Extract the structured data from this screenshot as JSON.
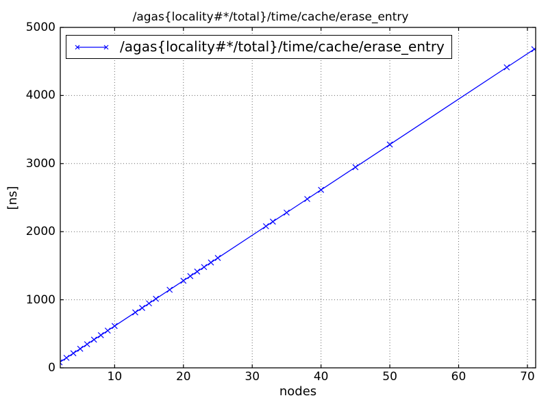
{
  "chart_data": {
    "type": "line",
    "title": "/agas{locality#*/total}/time/cache/erase_entry",
    "xlabel": "nodes",
    "ylabel": "[ns]",
    "xlim": [
      2.1,
      71.2
    ],
    "ylim": [
      0,
      5000
    ],
    "xticks": [
      10,
      20,
      30,
      40,
      50,
      60,
      70
    ],
    "yticks": [
      0,
      1000,
      2000,
      3000,
      4000,
      5000
    ],
    "grid": "dotted",
    "grid_color": "#666666",
    "legend_position": "upper left",
    "series": [
      {
        "name": "/agas{locality#*/total}/time/cache/erase_entry",
        "color": "#0000ff",
        "marker": "x",
        "x": [
          2,
          3,
          4,
          5,
          6,
          7,
          8,
          9,
          10,
          13,
          14,
          15,
          16,
          18,
          20,
          21,
          22,
          23,
          24,
          25,
          32,
          33,
          35,
          38,
          40,
          45,
          50,
          67,
          71
        ],
        "values": [
          81,
          147,
          214,
          280,
          347,
          414,
          480,
          547,
          614,
          814,
          880,
          947,
          1014,
          1147,
          1280,
          1347,
          1414,
          1480,
          1547,
          1614,
          2080,
          2147,
          2280,
          2480,
          2614,
          2947,
          3280,
          4414,
          4680
        ]
      }
    ]
  }
}
